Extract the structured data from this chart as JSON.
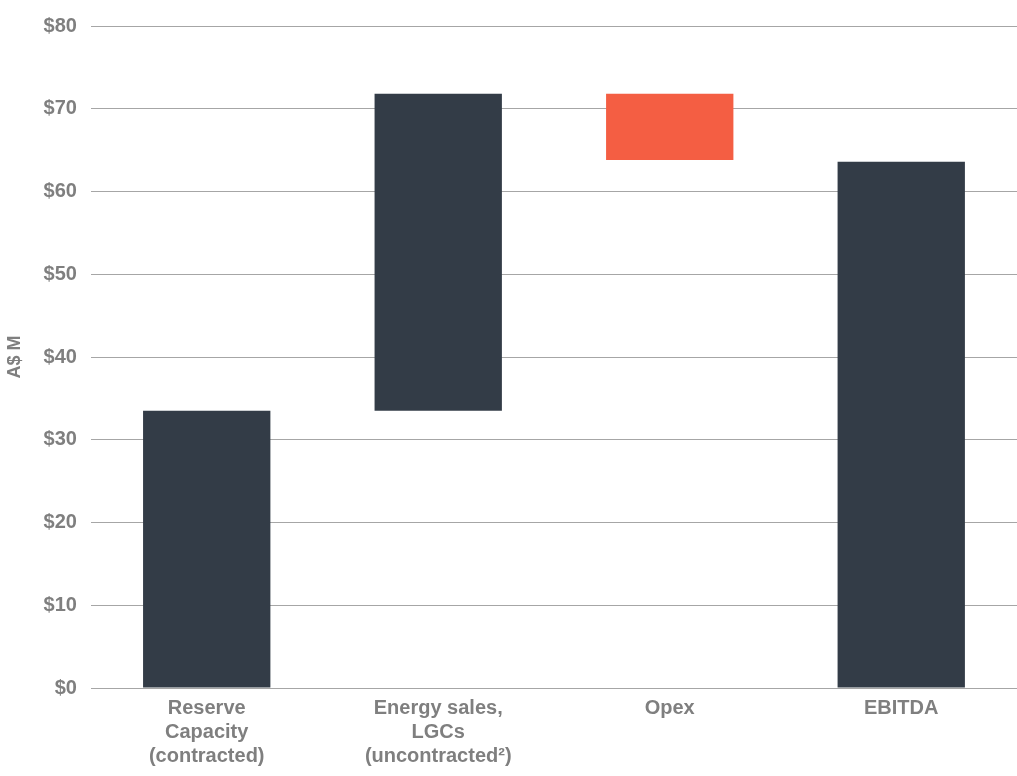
{
  "chart_data": {
    "type": "bar",
    "ylabel": "A$ M",
    "categories": [
      "Reserve Capacity (contracted)",
      "Energy sales, LGCs (uncontracted²)",
      "Opex",
      "EBITDA"
    ],
    "values": [
      33.5,
      38.3,
      8.0,
      63.6
    ],
    "base": [
      0,
      33.5,
      63.8,
      0
    ],
    "colors": [
      "#333c47",
      "#333c47",
      "#f45e43",
      "#333c47"
    ],
    "ylim": [
      0,
      80
    ],
    "yticks": [
      {
        "value": 0,
        "label": "$0"
      },
      {
        "value": 10,
        "label": "$10"
      },
      {
        "value": 20,
        "label": "$20"
      },
      {
        "value": 30,
        "label": "$30"
      },
      {
        "value": 40,
        "label": "$40"
      },
      {
        "value": 50,
        "label": "$50"
      },
      {
        "value": 60,
        "label": "$60"
      },
      {
        "value": 70,
        "label": "$70"
      },
      {
        "value": 80,
        "label": "$80"
      }
    ],
    "grid": "y",
    "legend": false
  }
}
